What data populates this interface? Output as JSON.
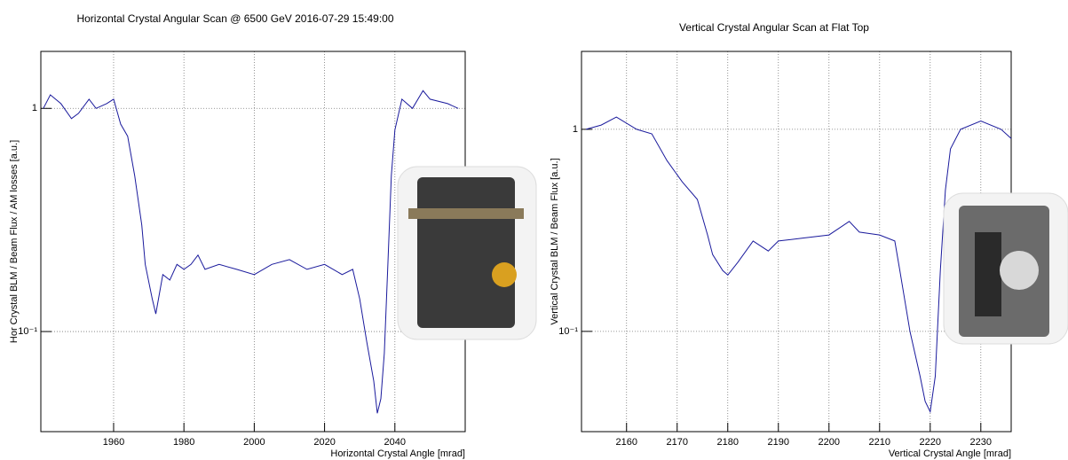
{
  "chart_data": [
    {
      "type": "line",
      "title": "Horizontal Crystal Angular Scan @ 6500 GeV 2016-07-29 15:49:00",
      "xlabel": "Horizontal Crystal Angle [mrad]",
      "ylabel": "Hor Crystal BLM / Beam Flux / AM losses [a.u.]",
      "log_y": true,
      "grid": true,
      "color": "#1a1a9c",
      "xlim": [
        1939.3,
        2060
      ],
      "xticks": [
        1960,
        1980,
        2000,
        2020,
        2040
      ],
      "ylim": [
        0.0356,
        1.8
      ],
      "yticks": [
        1,
        {
          "value": 0.1,
          "label": "10⁻¹"
        }
      ],
      "x": [
        1940,
        1942,
        1945,
        1948,
        1950,
        1953,
        1955,
        1958,
        1960,
        1962,
        1964,
        1966,
        1968,
        1969,
        1971,
        1972,
        1974,
        1976,
        1978,
        1980,
        1982,
        1984,
        1986,
        1990,
        1995,
        2000,
        2005,
        2010,
        2015,
        2020,
        2025,
        2028,
        2030,
        2032,
        2034,
        2035,
        2036,
        2037,
        2038,
        2039,
        2040,
        2042,
        2045,
        2048,
        2050,
        2055,
        2058
      ],
      "values": [
        1.0,
        1.15,
        1.05,
        0.9,
        0.95,
        1.1,
        1.0,
        1.05,
        1.1,
        0.85,
        0.75,
        0.5,
        0.3,
        0.2,
        0.14,
        0.12,
        0.18,
        0.17,
        0.2,
        0.19,
        0.2,
        0.22,
        0.19,
        0.2,
        0.19,
        0.18,
        0.2,
        0.21,
        0.19,
        0.2,
        0.18,
        0.19,
        0.14,
        0.09,
        0.06,
        0.043,
        0.05,
        0.08,
        0.2,
        0.5,
        0.8,
        1.1,
        1.0,
        1.2,
        1.1,
        1.05,
        1.0
      ]
    },
    {
      "type": "line",
      "title": "Vertical Crystal Angular Scan at Flat Top",
      "xlabel": "Vertical Crystal Angle [mrad]",
      "ylabel": "Vertical Crystal BLM / Beam Flux [a.u.]",
      "log_y": true,
      "grid": true,
      "color": "#1a1a9c",
      "xlim": [
        2151.1,
        2236
      ],
      "xticks": [
        2160,
        2170,
        2180,
        2190,
        2200,
        2210,
        2220,
        2230
      ],
      "ylim": [
        0.0319,
        2.43
      ],
      "yticks": [
        1,
        {
          "value": 0.1,
          "label": "10⁻¹"
        }
      ],
      "x": [
        2152,
        2155,
        2158,
        2162,
        2165,
        2168,
        2171,
        2174,
        2176,
        2177,
        2179,
        2180,
        2182,
        2185,
        2188,
        2190,
        2195,
        2200,
        2204,
        2206,
        2210,
        2213,
        2214,
        2216,
        2218,
        2219,
        2220,
        2221,
        2222,
        2223,
        2224,
        2226,
        2230,
        2234,
        2236
      ],
      "values": [
        1.0,
        1.05,
        1.15,
        1.0,
        0.95,
        0.7,
        0.55,
        0.45,
        0.3,
        0.24,
        0.2,
        0.19,
        0.22,
        0.28,
        0.25,
        0.28,
        0.29,
        0.3,
        0.35,
        0.31,
        0.3,
        0.28,
        0.2,
        0.1,
        0.06,
        0.045,
        0.04,
        0.06,
        0.2,
        0.5,
        0.8,
        1.0,
        1.1,
        1.0,
        0.9
      ]
    }
  ]
}
